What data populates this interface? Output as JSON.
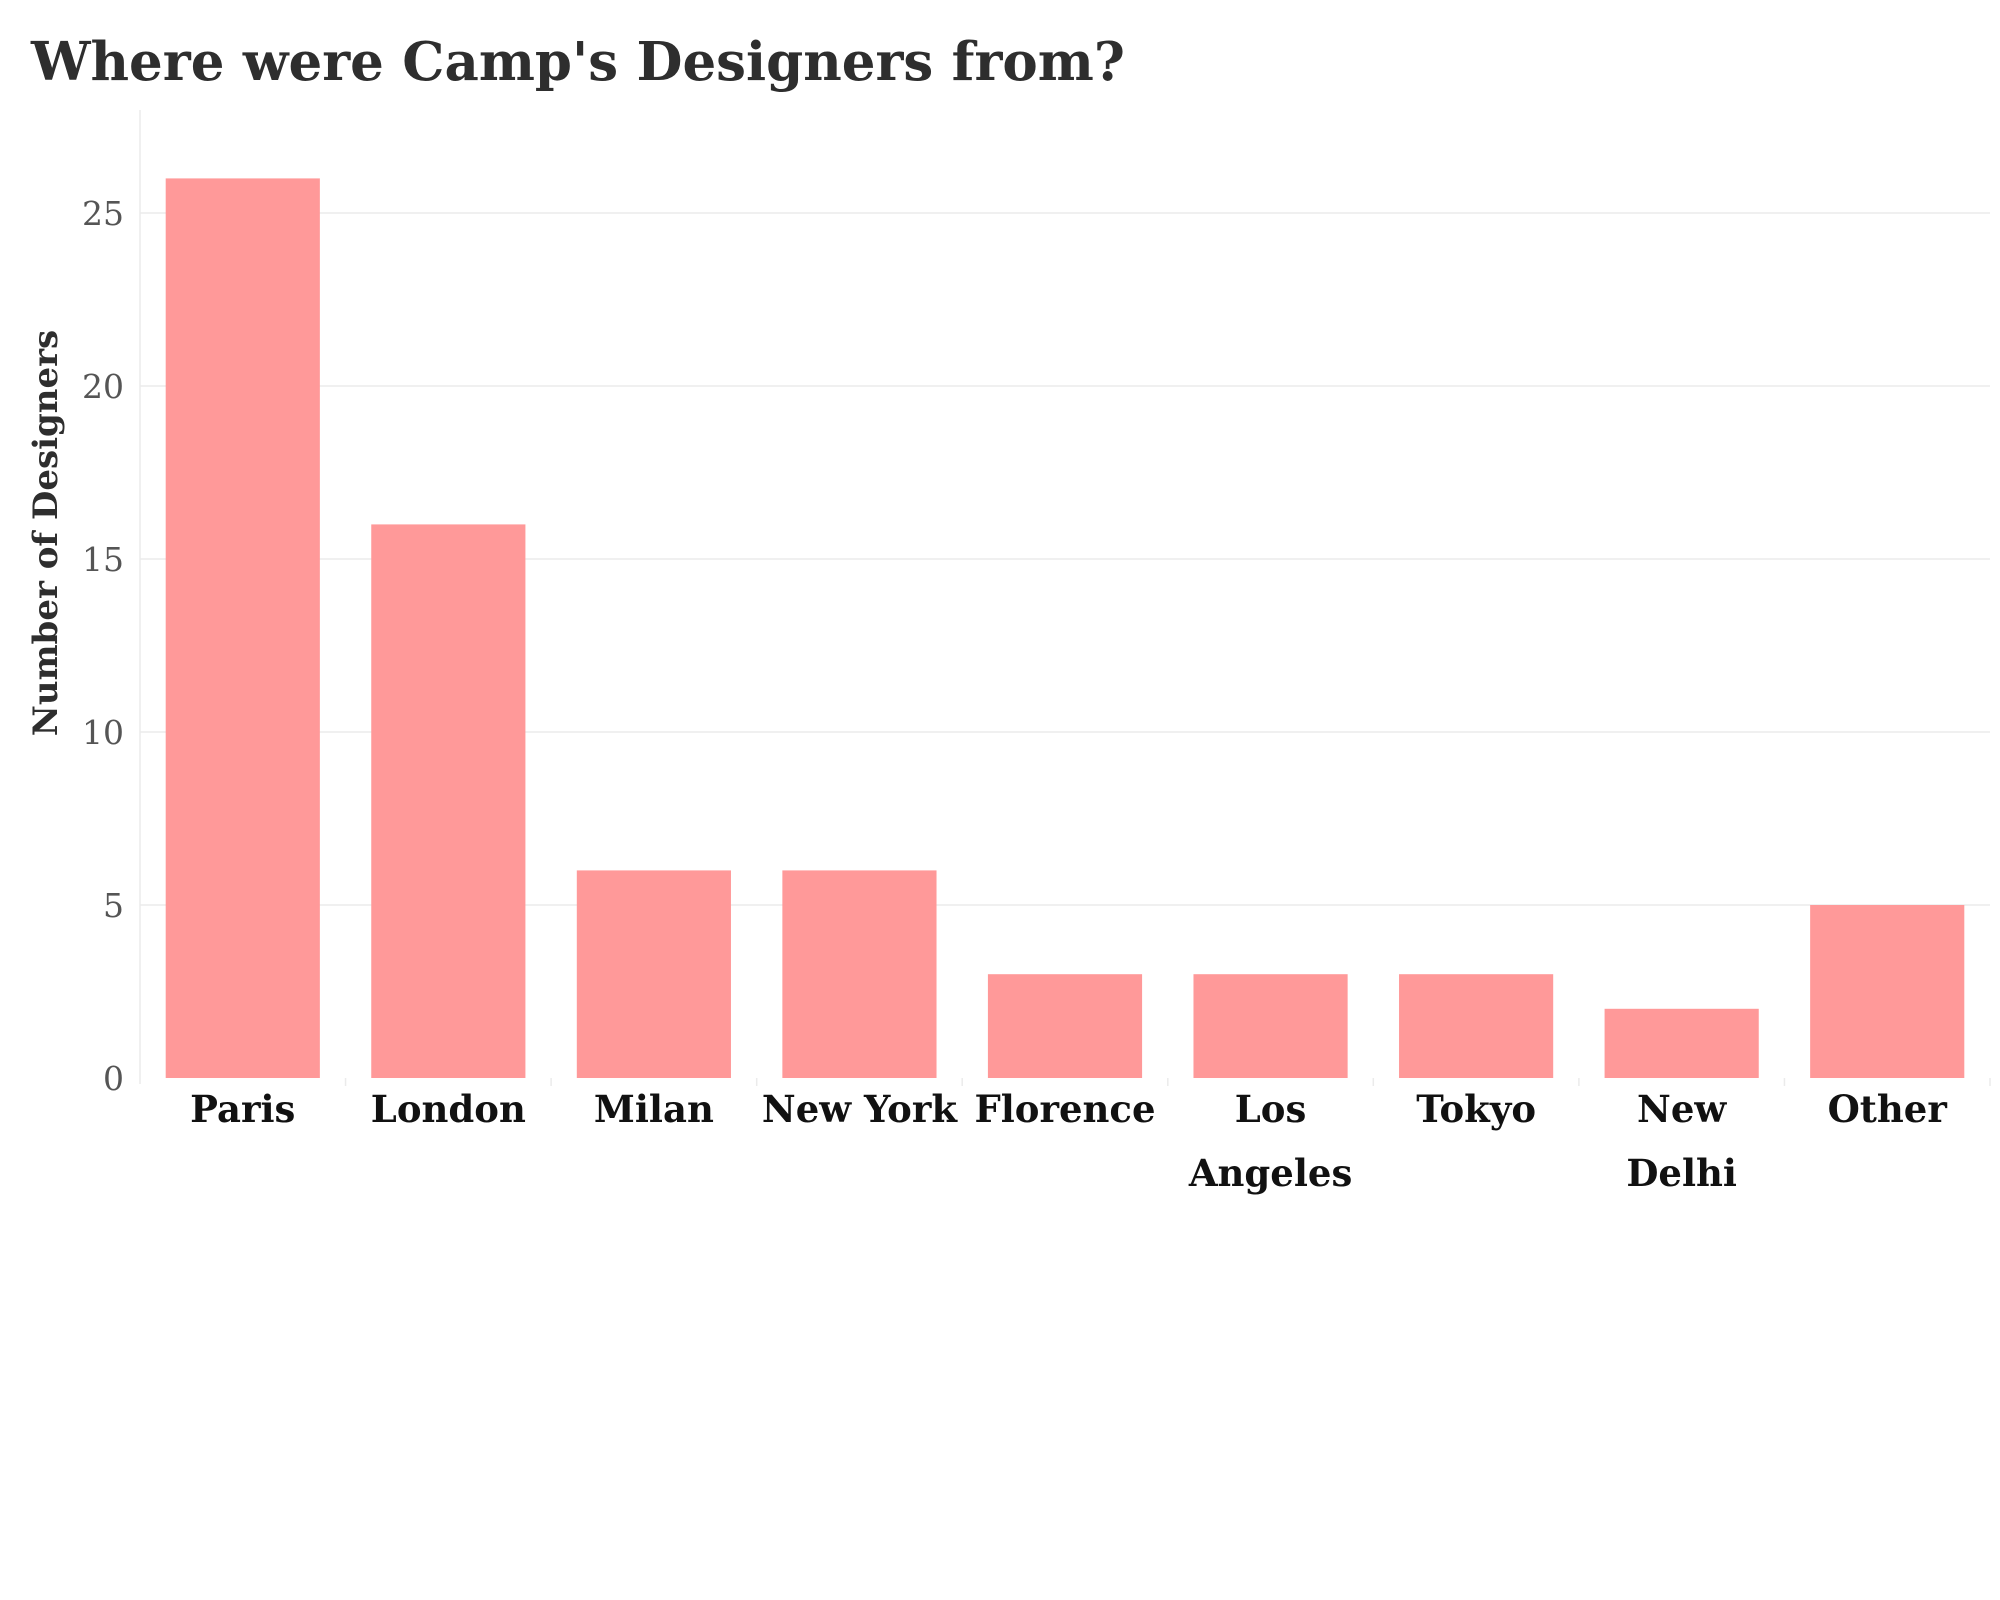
{
  "chart_data": {
    "type": "bar",
    "title": "Where were Camp's Designers from?",
    "xlabel": "",
    "ylabel": "Number of Designers",
    "categories": [
      "Paris",
      "London",
      "Milan",
      "New York",
      "Florence",
      "Los Angeles",
      "Tokyo",
      "New Delhi",
      "Other"
    ],
    "category_lines": [
      [
        "Paris"
      ],
      [
        "London"
      ],
      [
        "Milan"
      ],
      [
        "New York"
      ],
      [
        "Florence"
      ],
      [
        "Los",
        "Angeles"
      ],
      [
        "Tokyo"
      ],
      [
        "New",
        "Delhi"
      ],
      [
        "Other"
      ]
    ],
    "values": [
      26,
      16,
      6,
      6,
      3,
      3,
      3,
      2,
      5
    ],
    "ylim": [
      0,
      28
    ],
    "yticks": [
      0,
      5,
      10,
      15,
      20,
      25
    ],
    "grid": true,
    "legend": "none",
    "bar_color": "#ff9999"
  }
}
